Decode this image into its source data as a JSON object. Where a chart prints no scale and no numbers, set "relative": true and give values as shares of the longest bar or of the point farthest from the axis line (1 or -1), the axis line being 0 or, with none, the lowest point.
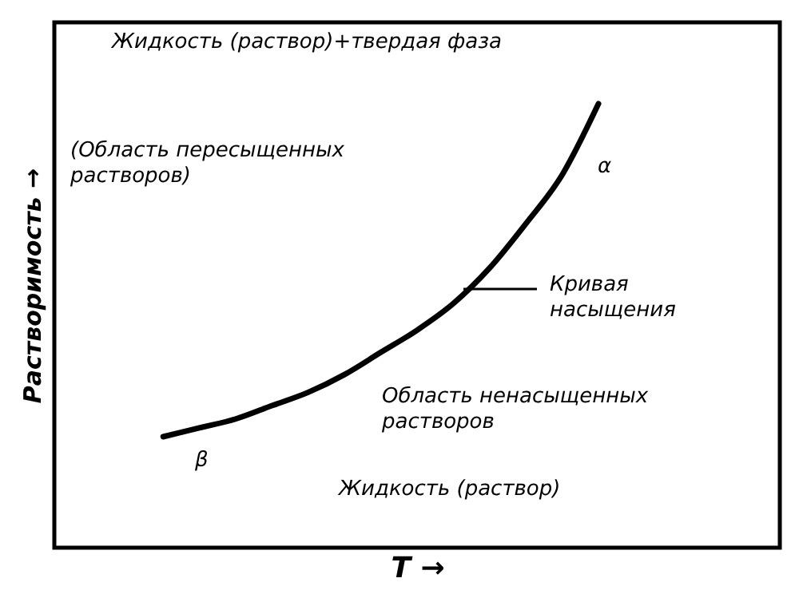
{
  "chart_data": {
    "type": "line",
    "relative": true,
    "xlabel": "T →",
    "ylabel": "Растворимость →",
    "categories": [
      null,
      null,
      null,
      null,
      null,
      null,
      null,
      null,
      null,
      null,
      null,
      null,
      null,
      null,
      null,
      null,
      null,
      null,
      null,
      null,
      null
    ],
    "series": [
      {
        "color": "#000000",
        "values": [
          null,
          null,
          null,
          0.25,
          0.27,
          0.29,
          0.32,
          0.35,
          0.39,
          0.44,
          0.49,
          0.55,
          0.63,
          0.73,
          0.84,
          1.0,
          null,
          null,
          null,
          null,
          null
        ]
      }
    ],
    "annotations": [
      "Жидкость (раствор)+твердая фаза",
      "(Область пересыщенных\nрастворов)",
      "α",
      "Кривая\nнасыщения",
      "Область ненасыщенных\nрастворов",
      "β",
      "Жидкость (раствор)"
    ],
    "grid": false,
    "marker": "none",
    "line_style": "solid"
  }
}
